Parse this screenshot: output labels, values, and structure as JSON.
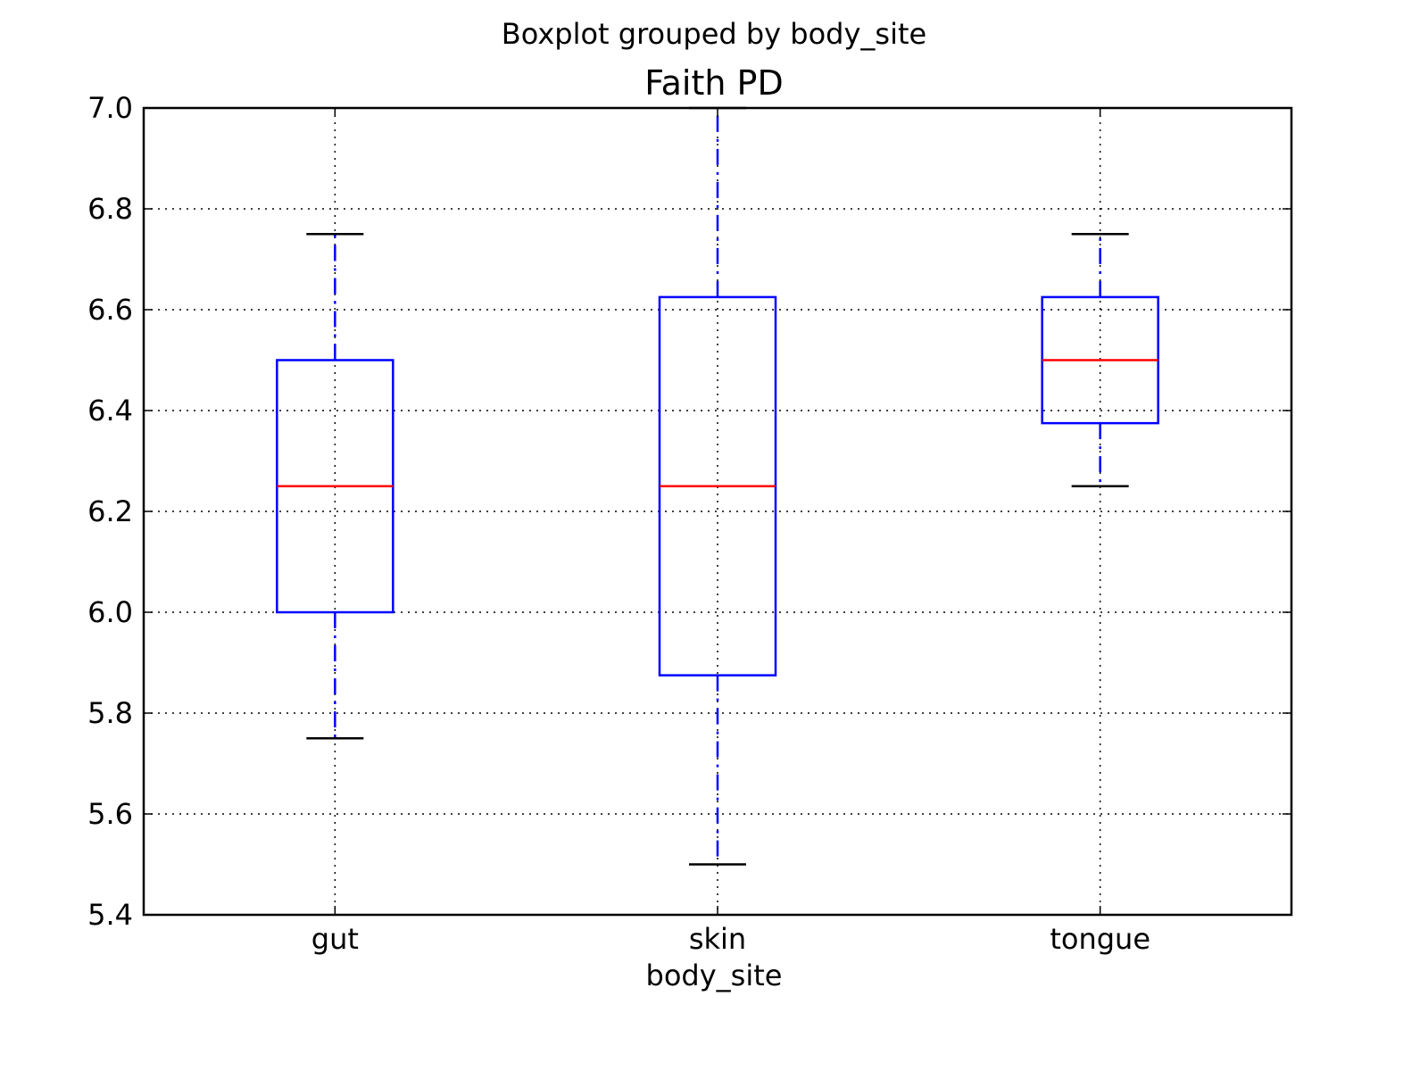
{
  "chart_data": {
    "type": "box",
    "suptitle": "Boxplot grouped by body_site",
    "title": "Faith PD",
    "xlabel": "body_site",
    "ylabel": "",
    "ylim": [
      5.4,
      7.0
    ],
    "yticks": [
      "5.4",
      "5.6",
      "5.8",
      "6.0",
      "6.2",
      "6.4",
      "6.6",
      "6.8",
      "7.0"
    ],
    "grid": true,
    "categories": [
      "gut",
      "skin",
      "tongue"
    ],
    "boxes": [
      {
        "category": "gut",
        "whisker_low": 5.75,
        "q1": 6.0,
        "median": 6.25,
        "q3": 6.5,
        "whisker_high": 6.75
      },
      {
        "category": "skin",
        "whisker_low": 5.5,
        "q1": 5.875,
        "median": 6.25,
        "q3": 6.625,
        "whisker_high": 7.0
      },
      {
        "category": "tongue",
        "whisker_low": 6.25,
        "q1": 6.375,
        "median": 6.5,
        "q3": 6.625,
        "whisker_high": 6.75
      }
    ],
    "colors": {
      "box": "#0000ff",
      "median": "#ff0000",
      "whisker": "#0000ff",
      "cap": "#000000",
      "grid": "#000000",
      "frame": "#000000"
    }
  }
}
